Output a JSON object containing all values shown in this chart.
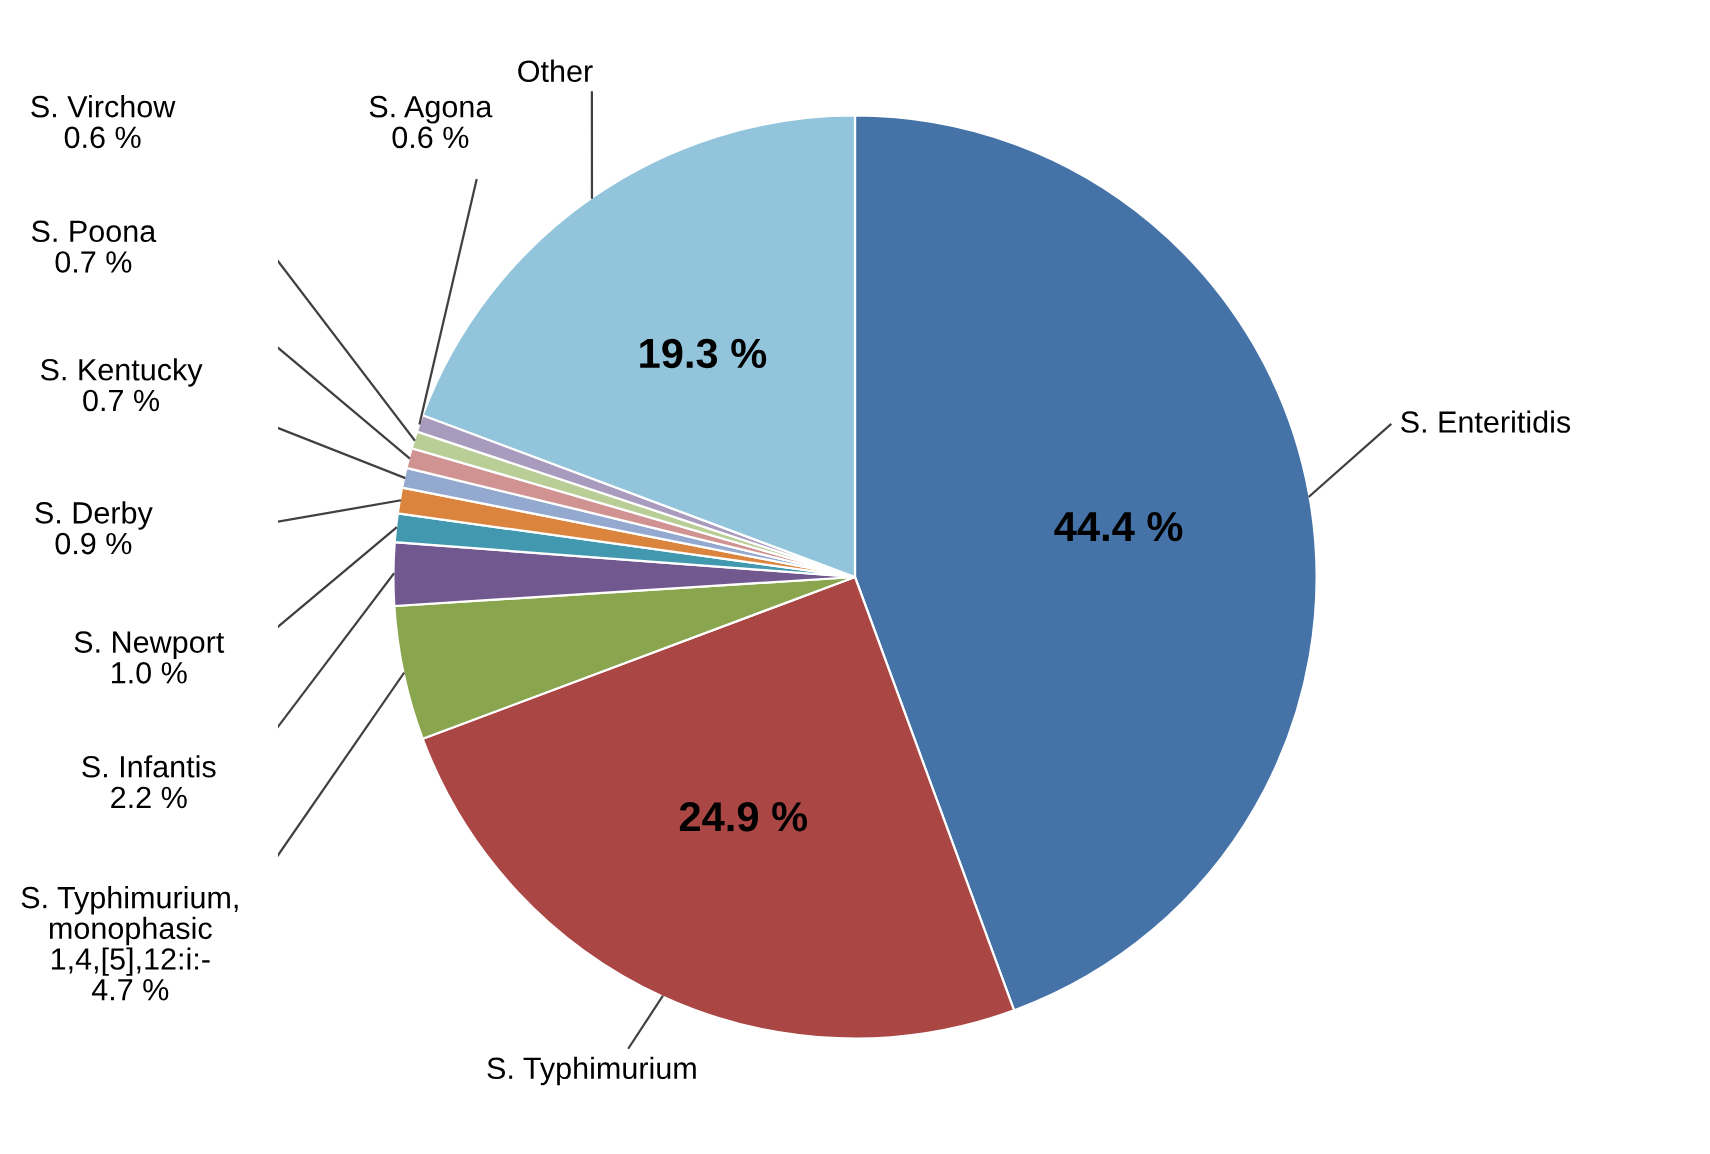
{
  "chart_data": {
    "type": "pie",
    "categories": [
      "S. Enteritidis",
      "S. Typhimurium",
      "S. Typhimurium,\nmonophasic\n1,4,[5],12:i:-",
      "S. Infantis",
      "S. Newport",
      "S. Derby",
      "S. Kentucky",
      "S. Poona",
      "S. Virchow",
      "S. Agona",
      "Other"
    ],
    "values": [
      44.4,
      24.9,
      4.7,
      2.2,
      1.0,
      0.9,
      0.7,
      0.7,
      0.6,
      0.6,
      19.3
    ],
    "value_labels": [
      "44.4 %",
      "24.9 %",
      "4.7 %",
      "2.2 %",
      "1.0 %",
      "0.9 %",
      "0.7 %",
      "0.7 %",
      "0.6 %",
      "0.6 %",
      "19.3 %"
    ],
    "colors": [
      "#4572a7",
      "#aa4643",
      "#89a54e",
      "#71588f",
      "#4198af",
      "#db843d",
      "#93a9cf",
      "#d19392",
      "#b9cd96",
      "#a99bbd",
      "#92c5dc"
    ],
    "legend": false
  }
}
